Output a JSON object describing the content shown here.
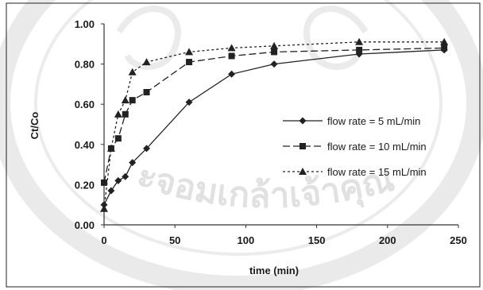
{
  "chart_data": {
    "type": "line",
    "xlabel": "time (min)",
    "ylabel": "Ct/Co",
    "xlim": [
      0,
      250
    ],
    "ylim": [
      0,
      1.0
    ],
    "x_ticks": [
      "0",
      "50",
      "100",
      "150",
      "200",
      "250"
    ],
    "y_ticks": [
      "0.00",
      "0.20",
      "0.40",
      "0.60",
      "0.80",
      "1.00"
    ],
    "grid": false,
    "legend_position": "right",
    "series": [
      {
        "name": "flow rate =   5 mL/min",
        "marker": "diamond",
        "line_style": "solid",
        "color": "#222222",
        "points": [
          [
            0,
            0.1
          ],
          [
            5,
            0.17
          ],
          [
            10,
            0.22
          ],
          [
            15,
            0.24
          ],
          [
            20,
            0.31
          ],
          [
            30,
            0.38
          ],
          [
            60,
            0.61
          ],
          [
            90,
            0.75
          ],
          [
            120,
            0.8
          ],
          [
            180,
            0.85
          ],
          [
            240,
            0.87
          ]
        ]
      },
      {
        "name": "flow rate = 10 mL/min",
        "marker": "square",
        "line_style": "long-dash",
        "color": "#222222",
        "points": [
          [
            0,
            0.21
          ],
          [
            5,
            0.38
          ],
          [
            10,
            0.43
          ],
          [
            15,
            0.55
          ],
          [
            20,
            0.62
          ],
          [
            30,
            0.66
          ],
          [
            60,
            0.81
          ],
          [
            90,
            0.84
          ],
          [
            120,
            0.86
          ],
          [
            180,
            0.87
          ],
          [
            240,
            0.88
          ]
        ]
      },
      {
        "name": "flow rate = 15 mL/min",
        "marker": "triangle",
        "line_style": "short-dash",
        "color": "#222222",
        "points": [
          [
            0,
            0.08
          ],
          [
            5,
            0.38
          ],
          [
            10,
            0.55
          ],
          [
            15,
            0.62
          ],
          [
            20,
            0.76
          ],
          [
            30,
            0.81
          ],
          [
            60,
            0.86
          ],
          [
            90,
            0.88
          ],
          [
            120,
            0.89
          ],
          [
            180,
            0.91
          ],
          [
            240,
            0.91
          ]
        ]
      }
    ]
  },
  "watermark": {
    "text": "ะจอมเกล้าเจ้าคุณ",
    "color": "#c9c9c9"
  }
}
